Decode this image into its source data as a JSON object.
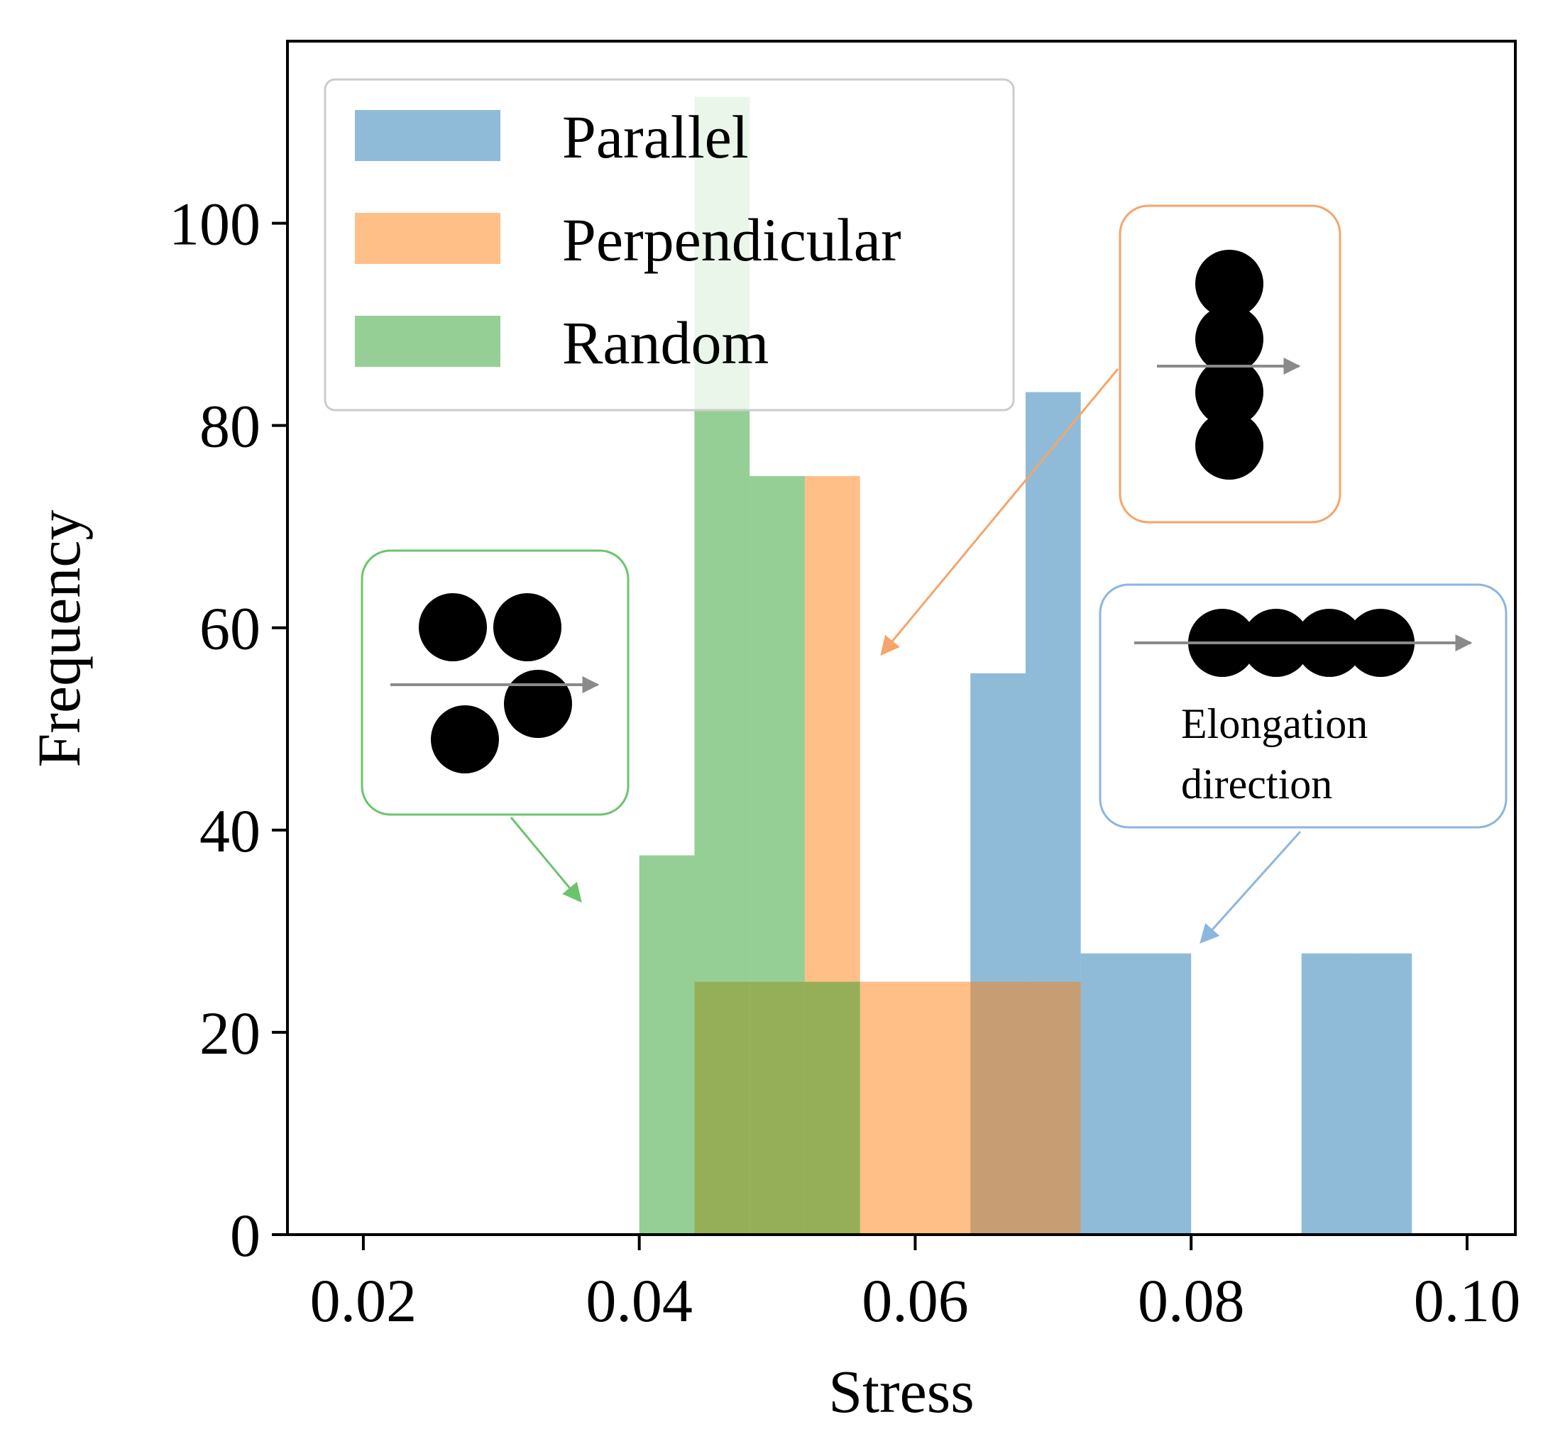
{
  "chart_data": {
    "type": "bar",
    "subtype": "overlapping-histogram",
    "title": "",
    "xlabel": "Stress",
    "ylabel": "Frequency",
    "xlim": [
      0.0145,
      0.1035
    ],
    "ylim": [
      0,
      118
    ],
    "bin_width": 0.004,
    "x_ticks": [
      0.02,
      0.04,
      0.06,
      0.08,
      0.1
    ],
    "x_tick_labels": [
      "0.02",
      "0.04",
      "0.06",
      "0.08",
      "0.10"
    ],
    "y_ticks": [
      0,
      20,
      40,
      60,
      80,
      100
    ],
    "y_tick_labels": [
      "0",
      "20",
      "40",
      "60",
      "80",
      "100"
    ],
    "legend_position": "top-left",
    "series": [
      {
        "name": "Parallel",
        "color": "#1f77b4",
        "bins": [
          {
            "start": 0.064,
            "end": 0.068,
            "value": 55.5
          },
          {
            "start": 0.068,
            "end": 0.072,
            "value": 83.3
          },
          {
            "start": 0.072,
            "end": 0.076,
            "value": 27.8
          },
          {
            "start": 0.076,
            "end": 0.08,
            "value": 27.8
          },
          {
            "start": 0.088,
            "end": 0.092,
            "value": 27.8
          },
          {
            "start": 0.092,
            "end": 0.096,
            "value": 27.8
          }
        ]
      },
      {
        "name": "Perpendicular",
        "color": "#ff7f0e",
        "bins": [
          {
            "start": 0.044,
            "end": 0.048,
            "value": 25
          },
          {
            "start": 0.048,
            "end": 0.052,
            "value": 25
          },
          {
            "start": 0.052,
            "end": 0.056,
            "value": 75
          },
          {
            "start": 0.056,
            "end": 0.06,
            "value": 25
          },
          {
            "start": 0.06,
            "end": 0.064,
            "value": 25
          },
          {
            "start": 0.064,
            "end": 0.068,
            "value": 25
          },
          {
            "start": 0.068,
            "end": 0.072,
            "value": 25
          }
        ]
      },
      {
        "name": "Random",
        "color": "#2ca02c",
        "bins": [
          {
            "start": 0.04,
            "end": 0.044,
            "value": 37.5
          },
          {
            "start": 0.044,
            "end": 0.048,
            "value": 112.5
          },
          {
            "start": 0.048,
            "end": 0.052,
            "value": 75
          },
          {
            "start": 0.052,
            "end": 0.056,
            "value": 25
          }
        ]
      }
    ],
    "insets": [
      {
        "name": "random",
        "caption": "",
        "color": "#6cc46c"
      },
      {
        "name": "perpendicular",
        "caption": "",
        "color": "#f5a56a"
      },
      {
        "name": "parallel",
        "caption": "Elongation direction",
        "caption_lines": [
          "Elongation",
          "direction"
        ],
        "color": "#8bb6de"
      }
    ]
  }
}
